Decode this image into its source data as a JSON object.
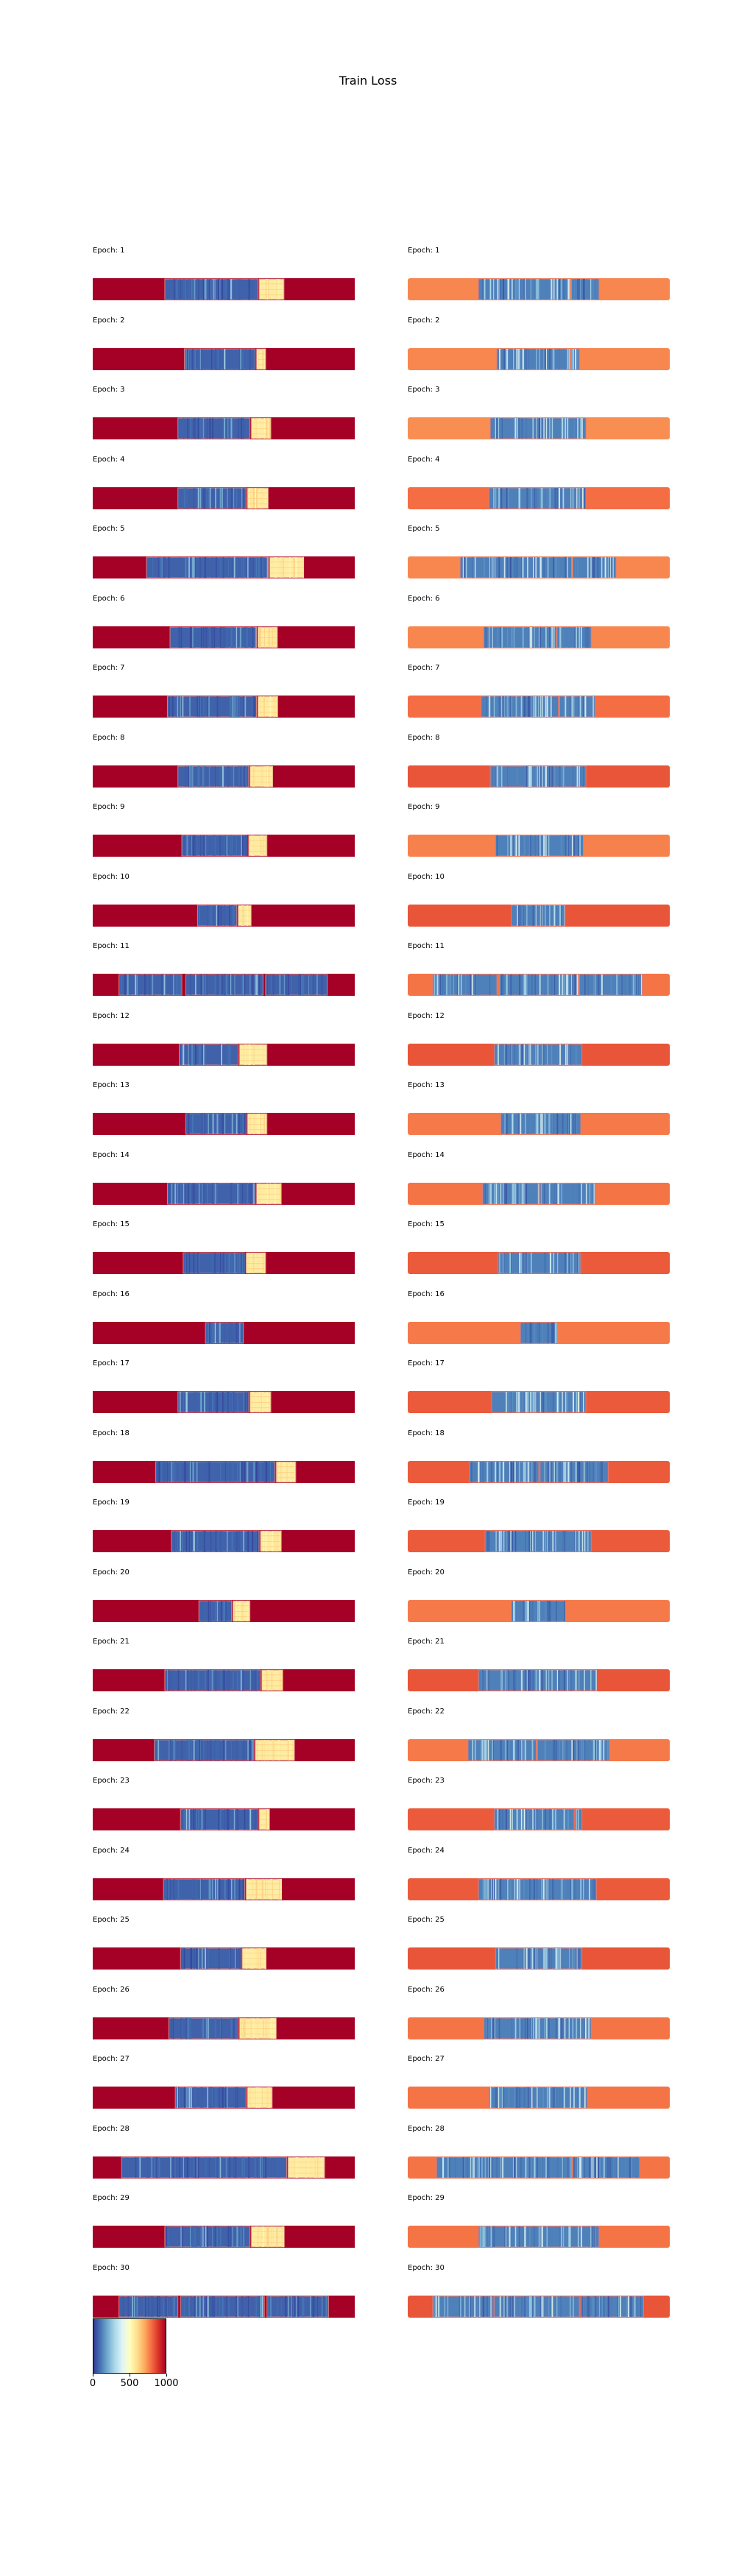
{
  "figure": {
    "title": "Train Loss"
  },
  "chart_data": {
    "type": "heatmap",
    "title": "Train Loss",
    "colormap": "RdYlBu_r",
    "colorbar": {
      "ticks": [
        "0",
        "500",
        "1000"
      ],
      "vmin": 0,
      "vmax": 1000
    },
    "columns": [
      {
        "background": 1000
      },
      {
        "background": 720
      }
    ],
    "panels": [
      {
        "label": "Epoch: 1",
        "left": {
          "background": 1000,
          "segments": [
            [
              0.275,
              0.63
            ],
            [
              0.635,
              0.73
            ]
          ]
        },
        "right": {
          "background": 760,
          "segments": [
            [
              0.27,
              0.62
            ],
            [
              0.625,
              0.73
            ]
          ]
        }
      },
      {
        "label": "Epoch: 2",
        "left": {
          "background": 1000,
          "segments": [
            [
              0.35,
              0.62
            ],
            [
              0.625,
              0.66
            ]
          ]
        },
        "right": {
          "background": 760,
          "segments": [
            [
              0.34,
              0.62
            ],
            [
              0.625,
              0.655
            ]
          ]
        }
      },
      {
        "label": "Epoch: 3",
        "left": {
          "background": 1000,
          "segments": [
            [
              0.325,
              0.6
            ],
            [
              0.605,
              0.68
            ]
          ]
        },
        "right": {
          "background": 750,
          "segments": [
            [
              0.315,
              0.68
            ]
          ]
        }
      },
      {
        "label": "Epoch: 4",
        "left": {
          "background": 1000,
          "segments": [
            [
              0.325,
              0.585
            ],
            [
              0.59,
              0.67
            ]
          ]
        },
        "right": {
          "background": 800,
          "segments": [
            [
              0.31,
              0.68
            ]
          ]
        }
      },
      {
        "label": "Epoch: 5",
        "left": {
          "background": 1000,
          "segments": [
            [
              0.205,
              0.67
            ],
            [
              0.675,
              0.805
            ]
          ]
        },
        "right": {
          "background": 760,
          "segments": [
            [
              0.2,
              0.625
            ],
            [
              0.63,
              0.795
            ]
          ]
        }
      },
      {
        "label": "Epoch: 6",
        "left": {
          "background": 1000,
          "segments": [
            [
              0.295,
              0.625
            ],
            [
              0.63,
              0.705
            ]
          ]
        },
        "right": {
          "background": 760,
          "segments": [
            [
              0.29,
              0.565
            ],
            [
              0.57,
              0.7
            ]
          ]
        }
      },
      {
        "label": "Epoch: 7",
        "left": {
          "background": 1000,
          "segments": [
            [
              0.285,
              0.625
            ],
            [
              0.63,
              0.705
            ]
          ]
        },
        "right": {
          "background": 800,
          "segments": [
            [
              0.28,
              0.575
            ],
            [
              0.58,
              0.715
            ]
          ]
        }
      },
      {
        "label": "Epoch: 8",
        "left": {
          "background": 1000,
          "segments": [
            [
              0.325,
              0.595
            ],
            [
              0.6,
              0.685
            ]
          ]
        },
        "right": {
          "background": 840,
          "segments": [
            [
              0.315,
              0.68
            ]
          ]
        }
      },
      {
        "label": "Epoch: 9",
        "left": {
          "background": 1000,
          "segments": [
            [
              0.34,
              0.59
            ],
            [
              0.595,
              0.665
            ]
          ]
        },
        "right": {
          "background": 770,
          "segments": [
            [
              0.335,
              0.67
            ]
          ]
        }
      },
      {
        "label": "Epoch: 10",
        "left": {
          "background": 1000,
          "segments": [
            [
              0.4,
              0.55
            ],
            [
              0.555,
              0.605
            ]
          ]
        },
        "right": {
          "background": 840,
          "segments": [
            [
              0.395,
              0.6
            ]
          ]
        }
      },
      {
        "label": "Epoch: 11",
        "left": {
          "background": 1000,
          "segments": [
            [
              0.1,
              0.34
            ],
            [
              0.355,
              0.65
            ],
            [
              0.66,
              0.895
            ]
          ]
        },
        "right": {
          "background": 790,
          "segments": [
            [
              0.095,
              0.34
            ],
            [
              0.35,
              0.65
            ],
            [
              0.655,
              0.895
            ]
          ]
        }
      },
      {
        "label": "Epoch: 12",
        "left": {
          "background": 1000,
          "segments": [
            [
              0.33,
              0.555
            ],
            [
              0.56,
              0.665
            ]
          ]
        },
        "right": {
          "background": 840,
          "segments": [
            [
              0.33,
              0.665
            ]
          ]
        }
      },
      {
        "label": "Epoch: 13",
        "left": {
          "background": 1000,
          "segments": [
            [
              0.355,
              0.585
            ],
            [
              0.59,
              0.665
            ]
          ]
        },
        "right": {
          "background": 780,
          "segments": [
            [
              0.355,
              0.66
            ]
          ]
        }
      },
      {
        "label": "Epoch: 14",
        "left": {
          "background": 1000,
          "segments": [
            [
              0.285,
              0.62
            ],
            [
              0.625,
              0.72
            ]
          ]
        },
        "right": {
          "background": 790,
          "segments": [
            [
              0.285,
              0.5
            ],
            [
              0.505,
              0.715
            ]
          ]
        }
      },
      {
        "label": "Epoch: 15",
        "left": {
          "background": 1000,
          "segments": [
            [
              0.345,
              0.58
            ],
            [
              0.585,
              0.66
            ]
          ]
        },
        "right": {
          "background": 830,
          "segments": [
            [
              0.345,
              0.66
            ]
          ]
        }
      },
      {
        "label": "Epoch: 16",
        "left": {
          "background": 1000,
          "segments": [
            [
              0.43,
              0.575
            ],
            [
              0.58,
              0.575
            ]
          ]
        },
        "right": {
          "background": 780,
          "segments": [
            [
              0.43,
              0.57
            ]
          ]
        }
      },
      {
        "label": "Epoch: 17",
        "left": {
          "background": 1000,
          "segments": [
            [
              0.325,
              0.595
            ],
            [
              0.6,
              0.68
            ]
          ]
        },
        "right": {
          "background": 830,
          "segments": [
            [
              0.32,
              0.68
            ]
          ]
        }
      },
      {
        "label": "Epoch: 18",
        "left": {
          "background": 1000,
          "segments": [
            [
              0.24,
              0.695
            ],
            [
              0.7,
              0.775
            ]
          ]
        },
        "right": {
          "background": 830,
          "segments": [
            [
              0.235,
              0.5
            ],
            [
              0.505,
              0.765
            ]
          ]
        }
      },
      {
        "label": "Epoch: 19",
        "left": {
          "background": 1000,
          "segments": [
            [
              0.3,
              0.635
            ],
            [
              0.64,
              0.72
            ]
          ]
        },
        "right": {
          "background": 830,
          "segments": [
            [
              0.295,
              0.7
            ]
          ]
        }
      },
      {
        "label": "Epoch: 20",
        "left": {
          "background": 1000,
          "segments": [
            [
              0.405,
              0.53
            ],
            [
              0.535,
              0.6
            ]
          ]
        },
        "right": {
          "background": 780,
          "segments": [
            [
              0.395,
              0.6
            ]
          ]
        }
      },
      {
        "label": "Epoch: 21",
        "left": {
          "background": 1000,
          "segments": [
            [
              0.275,
              0.64
            ],
            [
              0.645,
              0.725
            ]
          ]
        },
        "right": {
          "background": 840,
          "segments": [
            [
              0.27,
              0.72
            ]
          ]
        }
      },
      {
        "label": "Epoch: 22",
        "left": {
          "background": 1000,
          "segments": [
            [
              0.235,
              0.615
            ],
            [
              0.62,
              0.77
            ]
          ]
        },
        "right": {
          "background": 780,
          "segments": [
            [
              0.23,
              0.49
            ],
            [
              0.495,
              0.77
            ]
          ]
        }
      },
      {
        "label": "Epoch: 23",
        "left": {
          "background": 1000,
          "segments": [
            [
              0.335,
              0.63
            ],
            [
              0.635,
              0.675
            ]
          ]
        },
        "right": {
          "background": 830,
          "segments": [
            [
              0.33,
              0.635
            ],
            [
              0.64,
              0.665
            ]
          ]
        }
      },
      {
        "label": "Epoch: 24",
        "left": {
          "background": 1000,
          "segments": [
            [
              0.27,
              0.58
            ],
            [
              0.585,
              0.72
            ]
          ]
        },
        "right": {
          "background": 830,
          "segments": [
            [
              0.27,
              0.72
            ]
          ]
        }
      },
      {
        "label": "Epoch: 25",
        "left": {
          "background": 1000,
          "segments": [
            [
              0.335,
              0.565
            ],
            [
              0.57,
              0.66
            ]
          ]
        },
        "right": {
          "background": 840,
          "segments": [
            [
              0.335,
              0.665
            ]
          ]
        }
      },
      {
        "label": "Epoch: 26",
        "left": {
          "background": 1000,
          "segments": [
            [
              0.29,
              0.555
            ],
            [
              0.56,
              0.7
            ]
          ]
        },
        "right": {
          "background": 790,
          "segments": [
            [
              0.29,
              0.7
            ]
          ]
        }
      },
      {
        "label": "Epoch: 27",
        "left": {
          "background": 1000,
          "segments": [
            [
              0.315,
              0.585
            ],
            [
              0.59,
              0.685
            ]
          ]
        },
        "right": {
          "background": 790,
          "segments": [
            [
              0.31,
              0.685
            ]
          ]
        }
      },
      {
        "label": "Epoch: 28",
        "left": {
          "background": 1000,
          "segments": [
            [
              0.11,
              0.74
            ],
            [
              0.745,
              0.885
            ]
          ]
        },
        "right": {
          "background": 790,
          "segments": [
            [
              0.11,
              0.625
            ],
            [
              0.63,
              0.885
            ]
          ]
        }
      },
      {
        "label": "Epoch: 29",
        "left": {
          "background": 1000,
          "segments": [
            [
              0.275,
              0.6
            ],
            [
              0.605,
              0.73
            ]
          ]
        },
        "right": {
          "background": 790,
          "segments": [
            [
              0.27,
              0.73
            ]
          ]
        }
      },
      {
        "label": "Epoch: 30",
        "left": {
          "background": 1000,
          "segments": [
            [
              0.1,
              0.325
            ],
            [
              0.335,
              0.655
            ],
            [
              0.665,
              0.9
            ]
          ]
        },
        "right": {
          "background": 840,
          "segments": [
            [
              0.095,
              0.325
            ],
            [
              0.33,
              0.655
            ],
            [
              0.66,
              0.9
            ]
          ]
        }
      }
    ]
  }
}
